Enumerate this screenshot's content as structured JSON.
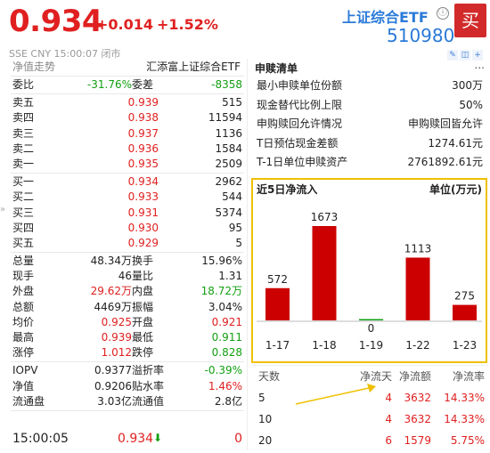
{
  "header": {
    "price": "0.934",
    "change": "+0.014",
    "change_pct": "+1.52%",
    "fund_name": "上证综合ETF",
    "info_icon": "ⓘ",
    "fund_code": "510980",
    "buy_label": "买",
    "status": "SSE  CNY  15:00:07  闭市"
  },
  "tabs": {
    "net_trend": "净值走势",
    "fund_full_name": "汇添富上证综合ETF"
  },
  "weibi": {
    "label": "委比",
    "value": "-31.76%",
    "label2": "委差",
    "value2": "-8358"
  },
  "asks": [
    {
      "label": "卖五",
      "price": "0.939",
      "vol": "515"
    },
    {
      "label": "卖四",
      "price": "0.938",
      "vol": "11594"
    },
    {
      "label": "卖三",
      "price": "0.937",
      "vol": "1136"
    },
    {
      "label": "卖二",
      "price": "0.936",
      "vol": "1584"
    },
    {
      "label": "卖一",
      "price": "0.935",
      "vol": "2509"
    }
  ],
  "bids": [
    {
      "label": "买一",
      "price": "0.934",
      "vol": "2962"
    },
    {
      "label": "买二",
      "price": "0.933",
      "vol": "544"
    },
    {
      "label": "买三",
      "price": "0.931",
      "vol": "5374"
    },
    {
      "label": "买四",
      "price": "0.930",
      "vol": "95"
    },
    {
      "label": "买五",
      "price": "0.929",
      "vol": "5"
    }
  ],
  "stats": [
    {
      "l1": "总量",
      "v1": "48.34万",
      "c1": "black",
      "l2": "换手",
      "v2": "15.96%",
      "c2": "black"
    },
    {
      "l1": "现手",
      "v1": "46",
      "c1": "black",
      "l2": "量比",
      "v2": "1.31",
      "c2": "black"
    },
    {
      "l1": "外盘",
      "v1": "29.62万",
      "c1": "red",
      "l2": "内盘",
      "v2": "18.72万",
      "c2": "green"
    },
    {
      "l1": "总额",
      "v1": "4469万",
      "c1": "black",
      "l2": "振幅",
      "v2": "3.04%",
      "c2": "black"
    },
    {
      "l1": "均价",
      "v1": "0.925",
      "c1": "red",
      "l2": "开盘",
      "v2": "0.921",
      "c2": "red"
    },
    {
      "l1": "最高",
      "v1": "0.939",
      "c1": "red",
      "l2": "最低",
      "v2": "0.911",
      "c2": "green"
    },
    {
      "l1": "涨停",
      "v1": "1.012",
      "c1": "red",
      "l2": "跌停",
      "v2": "0.828",
      "c2": "green"
    }
  ],
  "stats2": [
    {
      "l1": "IOPV",
      "v1": "0.9377",
      "c1": "black",
      "l2": "溢折率",
      "v2": "-0.39%",
      "c2": "green"
    },
    {
      "l1": "净值",
      "v1": "0.9206",
      "c1": "black",
      "l2": "贴水率",
      "v2": "1.46%",
      "c2": "red"
    },
    {
      "l1": "流通盘",
      "v1": "3.03亿",
      "c1": "black",
      "l2": "流通值",
      "v2": "2.8亿",
      "c2": "black"
    }
  ],
  "last_trade": {
    "time": "15:00:05",
    "price": "0.934",
    "arrow": "⬇",
    "vol": "0"
  },
  "redemption": {
    "title": "申赎清单",
    "more": "...",
    "rows": [
      {
        "label": "最小申赎单位份额",
        "value": "300万"
      },
      {
        "label": "现金替代比例上限",
        "value": "50%"
      },
      {
        "label": "申购赎回允许情况",
        "value": "申购赎回皆允许"
      },
      {
        "label": "T日预估现金差额",
        "value": "1274.61元"
      },
      {
        "label": "T-1日单位申赎资产",
        "value": "2761892.61元"
      }
    ]
  },
  "flow": {
    "title": "近5日净流入",
    "unit": "单位(万元)"
  },
  "chart_data": {
    "type": "bar",
    "title": "近5日净流入",
    "ylabel": "单位(万元)",
    "categories": [
      "1-17",
      "1-18",
      "1-19",
      "1-22",
      "1-23"
    ],
    "values": [
      572,
      1673,
      0,
      1113,
      275
    ],
    "colors": [
      "#cc0000",
      "#cc0000",
      "#12a012",
      "#cc0000",
      "#cc0000"
    ],
    "labels": [
      "572",
      "1673",
      "0",
      "1113",
      "275"
    ]
  },
  "flow_table": {
    "headers": [
      "天数",
      "净流天",
      "净流额",
      "净流率"
    ],
    "rows": [
      {
        "days": "5",
        "net_days": "4",
        "amount": "3632",
        "rate": "14.33%"
      },
      {
        "days": "10",
        "net_days": "4",
        "amount": "3632",
        "rate": "14.33%"
      },
      {
        "days": "20",
        "net_days": "6",
        "amount": "1579",
        "rate": "5.75%"
      }
    ]
  },
  "colors": {
    "up": "#e02020",
    "down": "#12a012",
    "accent": "#2a7ad8",
    "highlight": "#f0c000"
  }
}
